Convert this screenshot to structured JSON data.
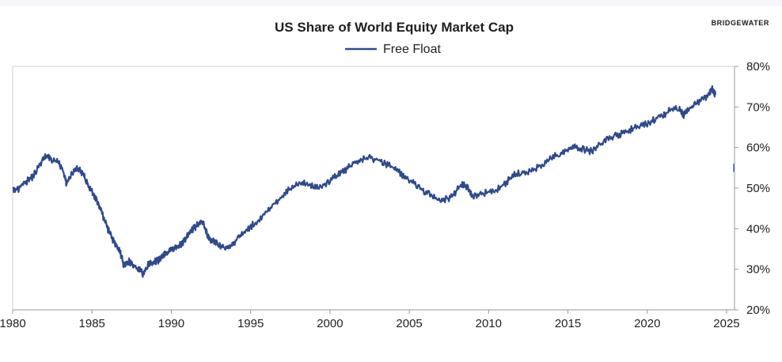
{
  "brand": "BRIDGEWATER",
  "chart_data": {
    "type": "line",
    "title": "US Share of World Equity Market Cap",
    "xlabel": "",
    "ylabel": "",
    "xlim": [
      1980,
      2025.5
    ],
    "ylim": [
      20,
      80
    ],
    "y_axis_side": "right",
    "legend": [
      "Free Float"
    ],
    "legend_position": "top-center",
    "grid": false,
    "x_ticks": [
      {
        "value": 1980,
        "label": "1980"
      },
      {
        "value": 1985,
        "label": "1985"
      },
      {
        "value": 1990,
        "label": "1990"
      },
      {
        "value": 1995,
        "label": "1995"
      },
      {
        "value": 2000,
        "label": "2000"
      },
      {
        "value": 2005,
        "label": "2005"
      },
      {
        "value": 2010,
        "label": "2010"
      },
      {
        "value": 2015,
        "label": "2015"
      },
      {
        "value": 2020,
        "label": "2020"
      },
      {
        "value": 2025,
        "label": "2025"
      }
    ],
    "y_ticks": [
      {
        "value": 20,
        "label": "20%"
      },
      {
        "value": 30,
        "label": "30%"
      },
      {
        "value": 40,
        "label": "40%"
      },
      {
        "value": 50,
        "label": "50%"
      },
      {
        "value": 60,
        "label": "60%"
      },
      {
        "value": 70,
        "label": "70%"
      },
      {
        "value": 80,
        "label": "80%"
      }
    ],
    "series": [
      {
        "name": "Free Float",
        "color": "#2e4a8c",
        "x": [
          1980.0,
          1980.3,
          1980.6,
          1981.0,
          1981.3,
          1981.6,
          1981.9,
          1982.2,
          1982.5,
          1982.9,
          1983.2,
          1983.4,
          1983.8,
          1984.2,
          1984.5,
          1984.7,
          1985.0,
          1985.3,
          1985.6,
          1985.9,
          1986.2,
          1986.5,
          1986.8,
          1987.0,
          1987.3,
          1987.6,
          1987.9,
          1988.2,
          1988.5,
          1988.8,
          1989.1,
          1989.4,
          1989.7,
          1990.0,
          1990.4,
          1990.7,
          1991.0,
          1991.4,
          1991.7,
          1992.0,
          1992.3,
          1992.6,
          1993.0,
          1993.4,
          1993.8,
          1994.2,
          1994.6,
          1995.0,
          1995.5,
          1996.0,
          1996.5,
          1997.0,
          1997.5,
          1998.0,
          1998.5,
          1999.0,
          1999.5,
          2000.0,
          2000.5,
          2001.0,
          2001.5,
          2002.0,
          2002.5,
          2003.0,
          2003.5,
          2004.0,
          2004.5,
          2005.0,
          2005.5,
          2006.0,
          2006.5,
          2007.0,
          2007.5,
          2007.9,
          2008.3,
          2008.7,
          2009.0,
          2009.5,
          2010.0,
          2010.5,
          2011.0,
          2011.5,
          2012.0,
          2012.5,
          2013.0,
          2013.5,
          2014.0,
          2014.5,
          2015.0,
          2015.5,
          2016.0,
          2016.5,
          2017.0,
          2017.5,
          2018.0,
          2018.5,
          2019.0,
          2019.5,
          2020.0,
          2020.5,
          2021.0,
          2021.5,
          2022.0,
          2022.3,
          2022.7,
          2023.0,
          2023.5,
          2023.9,
          2024.1,
          2024.3
        ],
        "values": [
          50,
          49.5,
          51,
          52,
          53,
          55,
          57,
          58,
          57,
          56.5,
          54,
          51,
          54,
          55,
          53,
          51,
          49,
          47,
          44,
          41,
          38,
          36,
          34,
          31,
          32,
          31,
          30,
          29,
          31,
          31.5,
          32,
          33,
          34,
          35,
          35.5,
          36.5,
          38,
          40,
          41,
          42,
          38,
          37,
          36,
          35.5,
          36,
          37.5,
          39,
          40.5,
          42,
          44,
          46,
          48,
          50,
          51,
          51.5,
          50,
          50.5,
          52,
          53.5,
          54.5,
          56,
          57,
          57.5,
          57,
          56,
          55,
          53.5,
          52,
          50.5,
          49,
          48,
          47,
          47.5,
          49,
          51,
          50,
          48,
          48.5,
          49,
          49.5,
          51,
          53,
          54,
          54,
          55,
          56,
          57.5,
          58.5,
          59.5,
          60,
          59.5,
          59,
          60.5,
          62,
          63,
          63.5,
          64.5,
          65.5,
          66,
          67,
          68,
          69.5,
          70,
          68,
          69.5,
          70.5,
          72,
          73,
          74.5,
          73
        ]
      }
    ]
  }
}
